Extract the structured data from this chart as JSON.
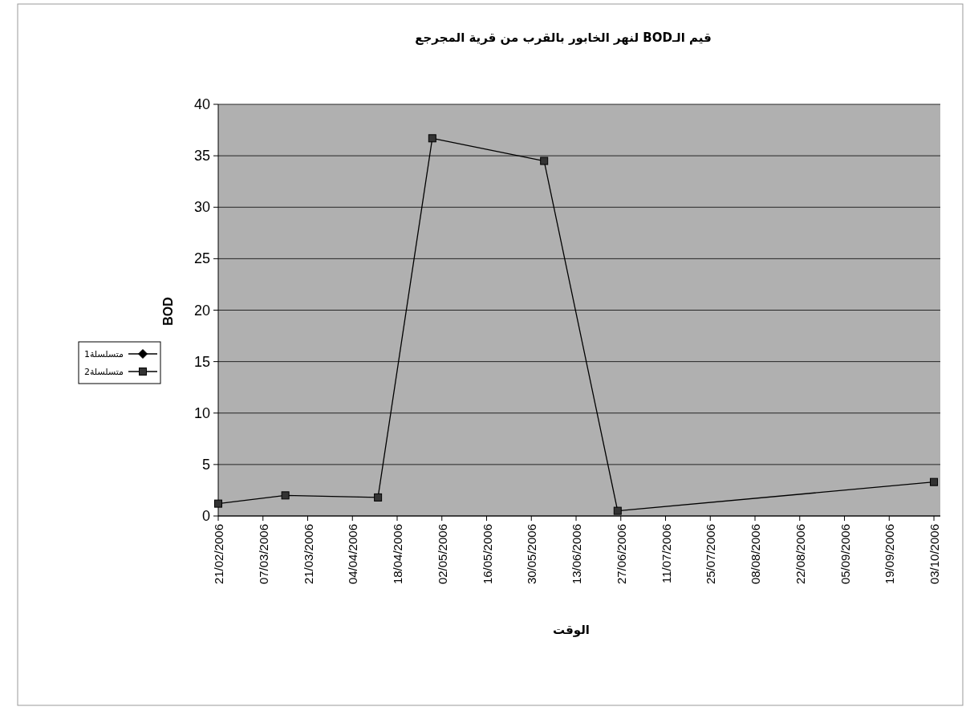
{
  "chart_data": {
    "type": "line",
    "title": "قيم الـBOD لنهر الخابور بالقرب من قرية المجرجع",
    "xlabel": "الوقت",
    "ylabel": "BOD",
    "x": [
      "2006-02-21",
      "2006-03-14",
      "2006-04-12",
      "2006-04-29",
      "2006-06-03",
      "2006-06-26",
      "2006-10-03"
    ],
    "series": [
      {
        "name": "متسلسلة1",
        "color": "#000000",
        "marker": "diamond",
        "values": [
          null,
          null,
          null,
          null,
          null,
          null,
          null
        ]
      },
      {
        "name": "متسلسلة2",
        "color": "#000000",
        "marker": "square",
        "values": [
          1.2,
          2,
          1.8,
          36.7,
          34.5,
          0.5,
          3.3
        ]
      }
    ],
    "xlim": [
      "2006-02-21",
      "2006-10-05"
    ],
    "xticks": [
      {
        "value": "2006-02-21",
        "label": "21/02/2006"
      },
      {
        "value": "2006-03-07",
        "label": "07/03/2006"
      },
      {
        "value": "2006-03-21",
        "label": "21/03/2006"
      },
      {
        "value": "2006-04-04",
        "label": "04/04/2006"
      },
      {
        "value": "2006-04-18",
        "label": "18/04/2006"
      },
      {
        "value": "2006-05-02",
        "label": "02/05/2006"
      },
      {
        "value": "2006-05-16",
        "label": "16/05/2006"
      },
      {
        "value": "2006-05-30",
        "label": "30/05/2006"
      },
      {
        "value": "2006-06-13",
        "label": "13/06/2006"
      },
      {
        "value": "2006-06-27",
        "label": "27/06/2006"
      },
      {
        "value": "2006-07-11",
        "label": "11/07/2006"
      },
      {
        "value": "2006-07-25",
        "label": "25/07/2006"
      },
      {
        "value": "2006-08-08",
        "label": "08/08/2006"
      },
      {
        "value": "2006-08-22",
        "label": "22/08/2006"
      },
      {
        "value": "2006-09-05",
        "label": "05/09/2006"
      },
      {
        "value": "2006-09-19",
        "label": "19/09/2006"
      },
      {
        "value": "2006-10-03",
        "label": "03/10/2006"
      }
    ],
    "ylim": [
      0,
      40
    ],
    "yticks": [
      0,
      5,
      10,
      15,
      20,
      25,
      30,
      35,
      40
    ],
    "grid": "y",
    "legend": "left",
    "line_style": "solid"
  }
}
